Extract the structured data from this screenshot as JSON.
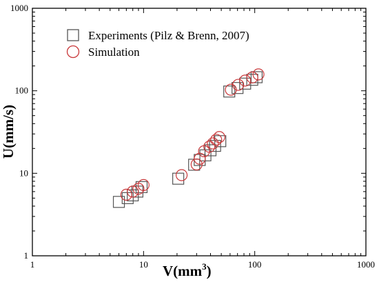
{
  "chart_data": {
    "type": "scatter",
    "title": "",
    "xlabel_main": "V(mm",
    "xlabel_sup": "3",
    "xlabel_end": ")",
    "ylabel": "U(mm/s)",
    "xscale": "log",
    "yscale": "log",
    "xlim": [
      1,
      1000
    ],
    "ylim": [
      1,
      1000
    ],
    "x_ticks": [
      1,
      10,
      100,
      1000
    ],
    "y_ticks": [
      1,
      10,
      100,
      1000
    ],
    "x_tick_labels": [
      "1",
      "10",
      "100",
      "1000"
    ],
    "y_tick_labels": [
      "1",
      "10",
      "100",
      "1000"
    ],
    "grid": false,
    "legend_position": "top-left",
    "series": [
      {
        "name": "Experiments (Pilz & Brenn, 2007)",
        "marker": "square",
        "color": "#555555",
        "points": [
          [
            6.0,
            4.5
          ],
          [
            7.2,
            5.0
          ],
          [
            8.0,
            5.4
          ],
          [
            8.8,
            6.0
          ],
          [
            9.6,
            6.8
          ],
          [
            20.5,
            8.6
          ],
          [
            28.5,
            12.7
          ],
          [
            32,
            14.5
          ],
          [
            36,
            16.5
          ],
          [
            40,
            19.0
          ],
          [
            44,
            21.5
          ],
          [
            49,
            24.5
          ],
          [
            59,
            98
          ],
          [
            70,
            108
          ],
          [
            82,
            122
          ],
          [
            95,
            136
          ],
          [
            104,
            146
          ]
        ]
      },
      {
        "name": "Simulation",
        "marker": "circle",
        "color": "#c9383a",
        "points": [
          [
            7.0,
            5.5
          ],
          [
            8.0,
            6.0
          ],
          [
            9.0,
            6.5
          ],
          [
            10.0,
            7.2
          ],
          [
            22.0,
            9.5
          ],
          [
            30,
            12.8
          ],
          [
            32,
            15.0
          ],
          [
            35,
            18.5
          ],
          [
            39,
            21.0
          ],
          [
            42,
            23.0
          ],
          [
            45,
            25.5
          ],
          [
            48,
            27.5
          ],
          [
            61,
            103
          ],
          [
            71,
            118
          ],
          [
            82,
            133
          ],
          [
            95,
            145
          ],
          [
            108,
            158
          ]
        ]
      }
    ]
  }
}
